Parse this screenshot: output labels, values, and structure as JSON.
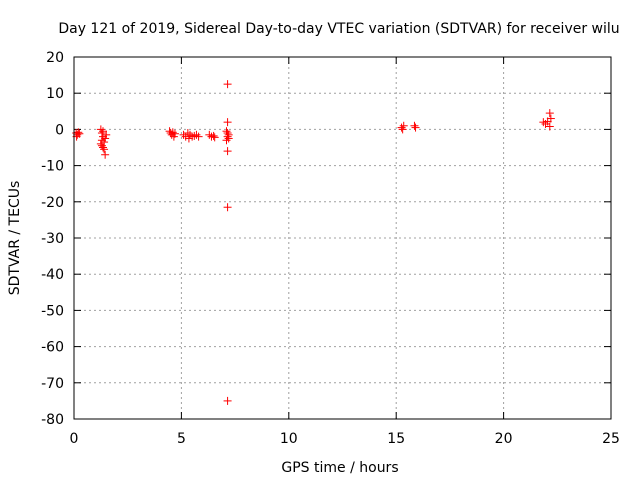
{
  "chart_data": {
    "type": "scatter",
    "title": "Day 121 of 2019, Sidereal Day-to-day VTEC variation (SDTVAR) for receiver wilu",
    "xlabel": "GPS time / hours",
    "ylabel": "SDTVAR / TECUs",
    "xlim": [
      0,
      25
    ],
    "ylim": [
      -80,
      20
    ],
    "xticks": [
      0,
      5,
      10,
      15,
      20,
      25
    ],
    "yticks": [
      20,
      10,
      0,
      -10,
      -20,
      -30,
      -40,
      -50,
      -60,
      -70,
      -80
    ],
    "grid": true,
    "marker": "+",
    "color": "#ff0000",
    "series": [
      {
        "name": "SDTVAR",
        "points": [
          [
            0.1,
            -1.0
          ],
          [
            0.15,
            -1.5
          ],
          [
            0.2,
            -0.8
          ],
          [
            0.25,
            -1.2
          ],
          [
            0.12,
            -2.0
          ],
          [
            1.25,
            0.0
          ],
          [
            1.3,
            -1.0
          ],
          [
            1.35,
            -2.0
          ],
          [
            1.3,
            -3.0
          ],
          [
            1.25,
            -4.0
          ],
          [
            1.3,
            -4.5
          ],
          [
            1.35,
            -5.0
          ],
          [
            1.4,
            -5.5
          ],
          [
            1.45,
            -7.0
          ],
          [
            1.4,
            -3.5
          ],
          [
            1.45,
            -2.5
          ],
          [
            1.5,
            -1.5
          ],
          [
            1.35,
            -0.5
          ],
          [
            4.45,
            -0.5
          ],
          [
            4.5,
            -1.0
          ],
          [
            4.55,
            -1.5
          ],
          [
            4.6,
            -0.8
          ],
          [
            4.65,
            -2.0
          ],
          [
            4.7,
            -1.2
          ],
          [
            5.1,
            -1.5
          ],
          [
            5.2,
            -2.0
          ],
          [
            5.3,
            -1.0
          ],
          [
            5.35,
            -2.5
          ],
          [
            5.4,
            -1.5
          ],
          [
            5.5,
            -2.0
          ],
          [
            5.6,
            -1.8
          ],
          [
            5.7,
            -1.5
          ],
          [
            5.8,
            -2.0
          ],
          [
            6.3,
            -1.5
          ],
          [
            6.4,
            -2.0
          ],
          [
            6.5,
            -1.8
          ],
          [
            6.55,
            -2.2
          ],
          [
            7.15,
            12.5
          ],
          [
            7.15,
            2.0
          ],
          [
            7.1,
            -0.5
          ],
          [
            7.15,
            -1.0
          ],
          [
            7.2,
            -1.5
          ],
          [
            7.15,
            -2.0
          ],
          [
            7.2,
            -2.5
          ],
          [
            7.1,
            -3.0
          ],
          [
            7.15,
            -6.0
          ],
          [
            7.15,
            -21.5
          ],
          [
            7.15,
            -75.0
          ],
          [
            15.25,
            0.5
          ],
          [
            15.3,
            0.0
          ],
          [
            15.35,
            1.0
          ],
          [
            15.85,
            1.0
          ],
          [
            15.9,
            0.5
          ],
          [
            21.85,
            2.0
          ],
          [
            21.95,
            1.5
          ],
          [
            22.05,
            2.2
          ],
          [
            22.15,
            4.5
          ],
          [
            22.2,
            3.0
          ],
          [
            22.15,
            0.8
          ]
        ]
      }
    ]
  }
}
